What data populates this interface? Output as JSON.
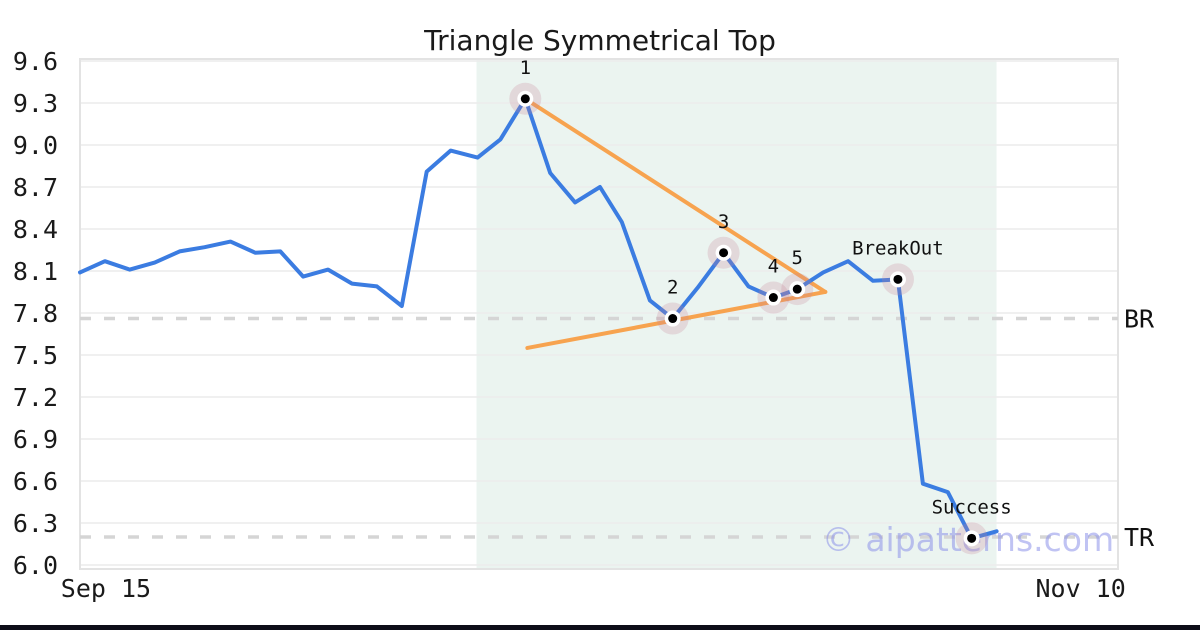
{
  "chart_data": {
    "type": "line",
    "title": "Triangle Symmetrical Top",
    "xlabel": "",
    "ylabel": "",
    "ylim": [
      5.971,
      9.614
    ],
    "grid": true,
    "y_ticks": [
      6.0,
      6.3,
      6.6,
      6.9,
      7.2,
      7.5,
      7.8,
      8.1,
      8.4,
      8.7,
      9.0,
      9.3,
      9.6
    ],
    "x_ticks": [
      {
        "label": "Sep 15",
        "t": 0.025
      },
      {
        "label": "Nov 10",
        "t": 0.964
      }
    ],
    "series": [
      {
        "name": "price",
        "points": [
          [
            0.0,
            8.09
          ],
          [
            0.024,
            8.17
          ],
          [
            0.048,
            8.11
          ],
          [
            0.072,
            8.16
          ],
          [
            0.096,
            8.24
          ],
          [
            0.12,
            8.27
          ],
          [
            0.145,
            8.31
          ],
          [
            0.169,
            8.23
          ],
          [
            0.193,
            8.24
          ],
          [
            0.215,
            8.06
          ],
          [
            0.239,
            8.11
          ],
          [
            0.262,
            8.01
          ],
          [
            0.286,
            7.99
          ],
          [
            0.31,
            7.85
          ],
          [
            0.334,
            8.81
          ],
          [
            0.357,
            8.96
          ],
          [
            0.383,
            8.91
          ],
          [
            0.405,
            9.04
          ],
          [
            0.429,
            9.33
          ],
          [
            0.453,
            8.8
          ],
          [
            0.477,
            8.59
          ],
          [
            0.501,
            8.7
          ],
          [
            0.522,
            8.45
          ],
          [
            0.549,
            7.89
          ],
          [
            0.571,
            7.76
          ],
          [
            0.595,
            7.98
          ],
          [
            0.62,
            8.23
          ],
          [
            0.644,
            7.99
          ],
          [
            0.668,
            7.91
          ],
          [
            0.691,
            7.97
          ],
          [
            0.716,
            8.09
          ],
          [
            0.74,
            8.17
          ],
          [
            0.764,
            8.03
          ],
          [
            0.788,
            8.04
          ],
          [
            0.812,
            6.58
          ],
          [
            0.836,
            6.52
          ],
          [
            0.859,
            6.19
          ],
          [
            0.883,
            6.24
          ]
        ]
      }
    ],
    "trendlines": [
      {
        "name": "upper-triangle-line",
        "from": {
          "t": 0.429,
          "v": 9.33
        },
        "to": {
          "t": 0.718,
          "v": 7.95
        }
      },
      {
        "name": "lower-triangle-line",
        "from": {
          "t": 0.431,
          "v": 7.55
        },
        "to": {
          "t": 0.718,
          "v": 7.95
        }
      }
    ],
    "levels": [
      {
        "label": "BR",
        "value": 7.76
      },
      {
        "label": "TR",
        "value": 6.2
      }
    ],
    "pattern_zone": {
      "t0": 0.382,
      "t1": 0.883
    },
    "annotations": [
      {
        "label": "1",
        "t": 0.429,
        "v": 9.33
      },
      {
        "label": "2",
        "t": 0.571,
        "v": 7.76
      },
      {
        "label": "3",
        "t": 0.62,
        "v": 8.23
      },
      {
        "label": "4",
        "t": 0.668,
        "v": 7.91
      },
      {
        "label": "5",
        "t": 0.691,
        "v": 7.97
      },
      {
        "label": "BreakOut",
        "t": 0.788,
        "v": 8.04
      },
      {
        "label": "Success",
        "t": 0.859,
        "v": 6.19
      }
    ],
    "legend": null
  },
  "watermark": {
    "text": "© aipatterns.com"
  },
  "theme": {
    "price_line_color": "#3b7ce1",
    "trendline_color": "#f7a34f",
    "marker_dot_color": "#000000",
    "marker_ring_color": "#ffffff",
    "marker_halo_color": "rgba(200,130,150,0.25)",
    "zone_fill_color": "#ebf4f0",
    "grid_color": "#ececec",
    "border_color": "#e3e3e3",
    "level_dash_color": "#d5d5d5",
    "text_color": "#1a1a1a",
    "watermark_color": "rgba(140,146,233,0.55)",
    "bottom_bar_color": "#0d0d18"
  }
}
